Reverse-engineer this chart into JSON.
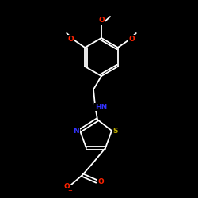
{
  "background_color": "#000000",
  "bond_color": "#ffffff",
  "atom_colors": {
    "O": "#ff2200",
    "N": "#3333ff",
    "S": "#bbaa00",
    "C": "#ffffff"
  },
  "figsize": [
    2.5,
    2.5
  ],
  "dpi": 100,
  "bond_lw": 1.3
}
